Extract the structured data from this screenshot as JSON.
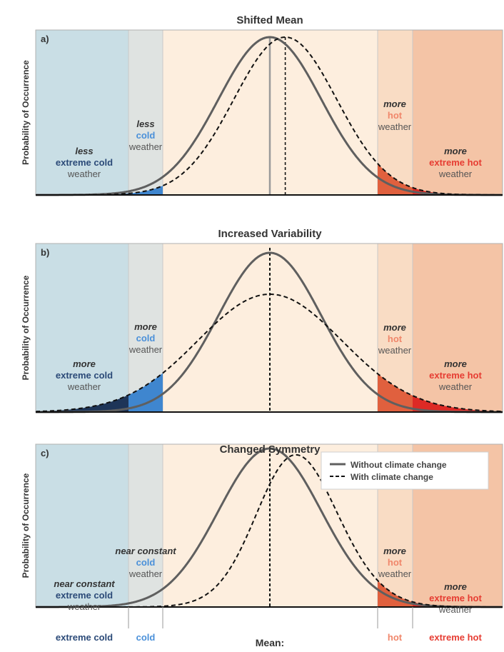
{
  "colors": {
    "extreme_cold_band": "#c9dee5",
    "cold_band": "#dfe3e1",
    "middle_band": "#fdeede",
    "hot_band": "#f9dcc4",
    "extreme_hot_band": "#f4c4a6",
    "cold_blue_label": "#4a90d9",
    "dark_blue_label": "#2b4a78",
    "hot_label": "#f0866a",
    "extreme_hot_label": "#e63c32",
    "weather_label": "#555555",
    "curve_solid": "#5f5f5f",
    "curve_dashed": "#111111"
  },
  "y_axis_label": "Probability of Occurrence",
  "legend": {
    "without": "Without climate change",
    "with": "With climate change"
  },
  "x_axis": {
    "extreme_cold": "extreme cold",
    "cold": "cold",
    "mean": "Mean:",
    "hot": "hot",
    "extreme_hot": "extreme hot"
  },
  "chart_data": [
    {
      "type": "line",
      "panel": "a)",
      "title": "Shifted Mean",
      "ylabel": "Probability of Occurrence",
      "series": [
        {
          "name": "Without climate change",
          "style": "solid",
          "mean": 0,
          "sd": 1,
          "skew": 0,
          "peak": 1.0
        },
        {
          "name": "With climate change",
          "style": "dashed",
          "mean": 0.3,
          "sd": 1,
          "skew": 0,
          "peak": 1.0
        }
      ],
      "labels": {
        "ext_cold": [
          "less",
          "extreme cold",
          "weather"
        ],
        "cold": [
          "less",
          "cold",
          "weather"
        ],
        "hot": [
          "more",
          "hot",
          "weather"
        ],
        "ext_hot": [
          "more",
          "extreme hot",
          "weather"
        ]
      }
    },
    {
      "type": "line",
      "panel": "b)",
      "title": "Increased Variability",
      "ylabel": "Probability of Occurrence",
      "series": [
        {
          "name": "Without climate change",
          "style": "solid",
          "mean": 0,
          "sd": 1,
          "skew": 0,
          "peak": 1.0
        },
        {
          "name": "With climate change",
          "style": "dashed",
          "mean": 0,
          "sd": 1.4,
          "skew": 0,
          "peak": 0.74
        }
      ],
      "labels": {
        "ext_cold": [
          "more",
          "extreme cold",
          "weather"
        ],
        "cold": [
          "more",
          "cold",
          "weather"
        ],
        "hot": [
          "more",
          "hot",
          "weather"
        ],
        "ext_hot": [
          "more",
          "extreme hot",
          "weather"
        ]
      }
    },
    {
      "type": "line",
      "panel": "c)",
      "title": "Changed Symmetry",
      "ylabel": "Probability of Occurrence",
      "series": [
        {
          "name": "Without climate change",
          "style": "solid",
          "mean": 0,
          "sd": 1,
          "skew": 0,
          "peak": 1.0
        },
        {
          "name": "With climate change",
          "style": "dashed",
          "mean": 0,
          "sd": 1,
          "skew": 1,
          "peak": 0.96
        }
      ],
      "labels": {
        "ext_cold": [
          "near constant",
          "extreme cold",
          "weather"
        ],
        "cold": [
          "near constant",
          "cold",
          "weather"
        ],
        "hot": [
          "more",
          "hot",
          "weather"
        ],
        "ext_hot": [
          "more",
          "extreme hot",
          "weather"
        ]
      }
    }
  ]
}
